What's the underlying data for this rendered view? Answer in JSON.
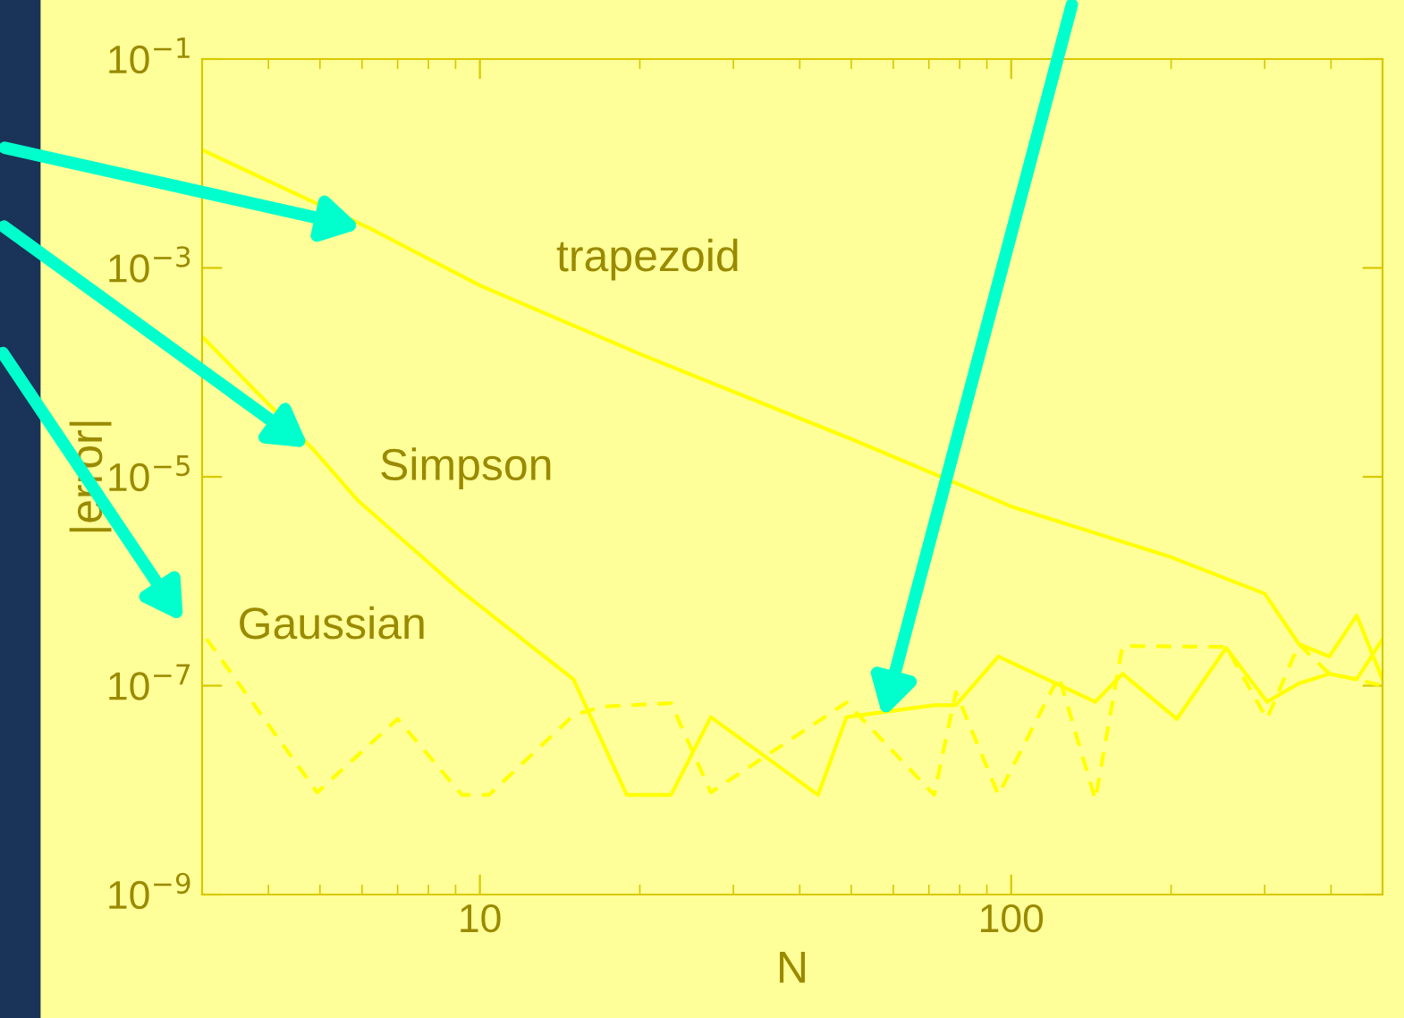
{
  "chart_data": {
    "type": "line",
    "xlabel": "N",
    "ylabel": "|error|",
    "log": "xy",
    "grid": false,
    "legend": false,
    "xlim": [
      3,
      500
    ],
    "xticks": [
      10,
      100
    ],
    "ylim": [
      1e-09,
      0.1
    ],
    "yticks": [
      {
        "value": 0.1,
        "label": "10$^{−1}$"
      },
      {
        "value": 0.001,
        "label": "10$^{−3}$"
      },
      {
        "value": 1e-05,
        "label": "10$^{−5}$"
      },
      {
        "value": 1e-07,
        "label": "10$^{−7}$"
      },
      {
        "value": 1e-09,
        "label": "10$^{−9}$"
      }
    ],
    "series": [
      {
        "color": "#ffff00",
        "line_style": "solid",
        "x": [
          3,
          4,
          5,
          6.2,
          10,
          20,
          50,
          100,
          200,
          300,
          348,
          397,
          447,
          500
        ],
        "values": [
          0.0135,
          0.0068,
          0.004,
          0.0024,
          0.00068,
          0.00015,
          2.3e-05,
          5.2e-06,
          1.7e-06,
          7.6e-07,
          2.5e-07,
          1.9e-07,
          4.7e-07,
          1.15e-07
        ]
      },
      {
        "color": "#ffff00",
        "line_style": "solid",
        "x": [
          3,
          4.87,
          5.9,
          9.2,
          15,
          18.9,
          22.9,
          27.2,
          43.3,
          49,
          56,
          71.6,
          78.7,
          94.6,
          144,
          162,
          205,
          254,
          303,
          348,
          397,
          447,
          500
        ],
        "values": [
          0.00022,
          1.8e-05,
          5.9e-06,
          8.1e-07,
          1.15e-07,
          9e-09,
          9e-09,
          5e-08,
          9e-09,
          5e-08,
          5.5e-08,
          6.5e-08,
          6.5e-08,
          1.9e-07,
          7e-08,
          1.3e-07,
          4.8e-08,
          2.3e-07,
          7e-08,
          1.05e-07,
          1.3e-07,
          1.15e-07,
          2.8e-07
        ]
      },
      {
        "color": "#ffff00",
        "line_style": "dashed",
        "x": [
          3.06,
          4.94,
          7,
          9.25,
          10.4,
          15,
          17,
          22.9,
          27.2,
          49,
          71.6,
          78.7,
          94.6,
          123,
          144,
          162,
          254,
          303,
          348,
          397,
          447,
          500
        ],
        "values": [
          2.8e-07,
          9.5e-09,
          4.8e-08,
          9e-09,
          9e-09,
          5.2e-08,
          6.3e-08,
          6.8e-08,
          9.5e-09,
          6.9e-08,
          9e-09,
          8.7e-08,
          9e-09,
          1.23e-07,
          8.1e-09,
          2.4e-07,
          2.35e-07,
          4.8e-08,
          2.5e-07,
          1.3e-07,
          1.15e-07,
          1e-07
        ]
      }
    ],
    "annotations": [
      "trapezoid",
      "Simpson",
      "Gaussian"
    ]
  }
}
